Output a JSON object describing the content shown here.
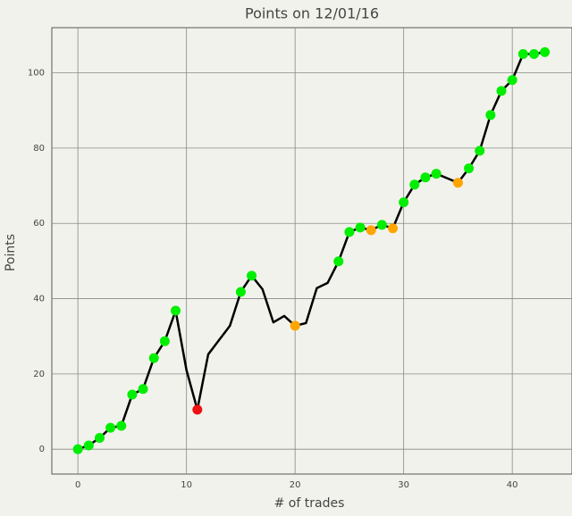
{
  "chart_data": {
    "type": "line",
    "title": "Points on 12/01/16",
    "xlabel": "# of trades",
    "ylabel": "Points",
    "x": [
      0,
      1,
      2,
      3,
      4,
      5,
      6,
      7,
      8,
      9,
      10,
      11,
      12,
      13,
      14,
      15,
      16,
      17,
      18,
      19,
      20,
      21,
      22,
      23,
      24,
      25,
      26,
      27,
      28,
      29,
      30,
      31,
      32,
      33,
      34,
      35,
      36,
      37,
      38,
      39,
      40,
      41,
      42,
      43
    ],
    "series": [
      {
        "color": "#000000",
        "values": [
          0,
          1,
          3,
          5.7,
          6.2,
          14.5,
          16,
          24.2,
          28.7,
          36.8,
          21,
          10.5,
          25.2,
          29,
          32.8,
          41.8,
          46.1,
          42.5,
          33.7,
          35.4,
          32.8,
          33.5,
          42.8,
          44.2,
          49.9,
          57.7,
          58.9,
          58.2,
          59.6,
          58.7,
          65.6,
          70.3,
          72.2,
          73.2,
          72,
          70.8,
          74.6,
          79.3,
          88.8,
          95.2,
          98.1,
          105,
          105,
          105.5
        ],
        "marker_colors": [
          "#00ee00",
          "#00ee00",
          "#00ee00",
          "#00ee00",
          "#00ee00",
          "#00ee00",
          "#00ee00",
          "#00ee00",
          "#00ee00",
          "#00ee00",
          null,
          "#ee1111",
          null,
          null,
          null,
          "#00ee00",
          "#00ee00",
          null,
          null,
          null,
          "#ffa500",
          null,
          null,
          null,
          "#00ee00",
          "#00ee00",
          "#00ee00",
          "#ffa500",
          "#00ee00",
          "#ffa500",
          "#00ee00",
          "#00ee00",
          "#00ee00",
          "#00ee00",
          null,
          "#ffa500",
          "#00ee00",
          "#00ee00",
          "#00ee00",
          "#00ee00",
          "#00ee00",
          "#00ee00",
          "#00ee00",
          "#00ee00"
        ]
      }
    ],
    "xlim": [
      -2.4,
      45.5
    ],
    "ylim": [
      -6.6,
      112
    ],
    "xticks": [
      0,
      10,
      20,
      30,
      40
    ],
    "yticks": [
      0,
      20,
      40,
      60,
      80,
      100
    ],
    "grid": true
  }
}
